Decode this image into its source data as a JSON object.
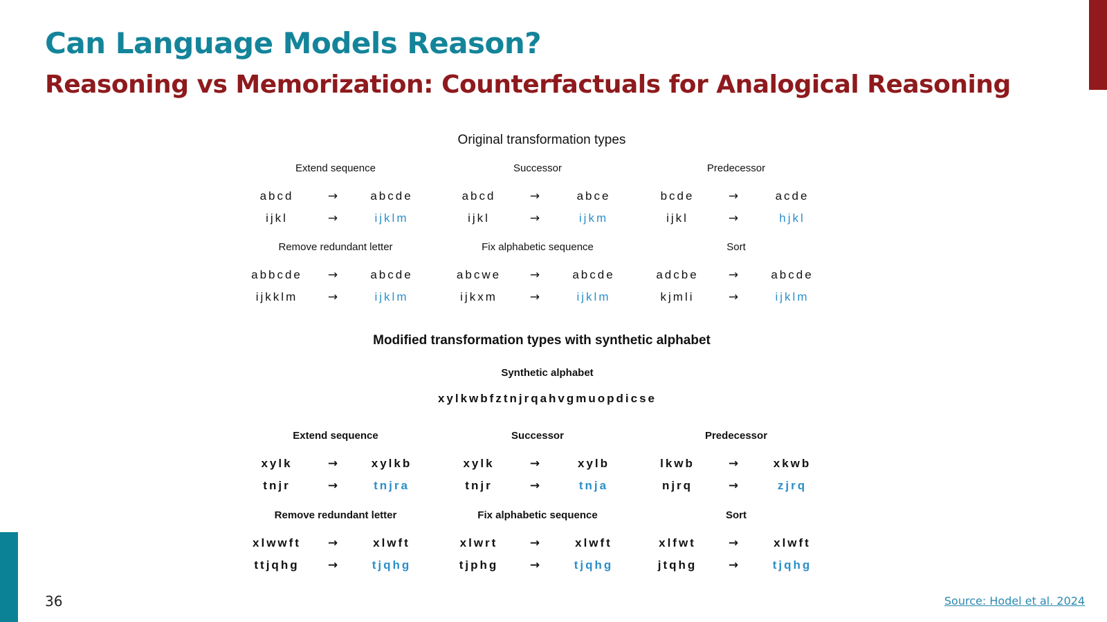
{
  "slide": {
    "title": "Can Language Models Reason?",
    "subtitle": "Reasoning vs Memorization: Counterfactuals for Analogical Reasoning",
    "number": "36",
    "source": "Source: Hodel et al. 2024",
    "colors": {
      "title": "#13849a",
      "subtitle": "#8e1a1d",
      "corner_bar": "#921a1c",
      "side_bar": "#0c8296",
      "answer": "#2b8fc9"
    }
  },
  "figure": {
    "original_heading": "Original transformation types",
    "modified_heading": "Modified transformation types with synthetic alphabet",
    "synthetic_label": "Synthetic alphabet",
    "synthetic_alphabet": "xylkwbfztnjrqahvgmuopdicse",
    "arrow": "→",
    "original": [
      {
        "title": "Extend sequence",
        "rows": [
          {
            "src": "abcd",
            "dst": "abcde"
          },
          {
            "src": "ijkl",
            "dst": "ijklm"
          }
        ]
      },
      {
        "title": "Successor",
        "rows": [
          {
            "src": "abcd",
            "dst": "abce"
          },
          {
            "src": "ijkl",
            "dst": "ijkm"
          }
        ]
      },
      {
        "title": "Predecessor",
        "rows": [
          {
            "src": "bcde",
            "dst": "acde"
          },
          {
            "src": "ijkl",
            "dst": "hjkl"
          }
        ]
      },
      {
        "title": "Remove redundant letter",
        "rows": [
          {
            "src": "abbcde",
            "dst": "abcde"
          },
          {
            "src": "ijkklm",
            "dst": "ijklm"
          }
        ]
      },
      {
        "title": "Fix alphabetic sequence",
        "rows": [
          {
            "src": "abcwe",
            "dst": "abcde"
          },
          {
            "src": "ijkxm",
            "dst": "ijklm"
          }
        ]
      },
      {
        "title": "Sort",
        "rows": [
          {
            "src": "adcbe",
            "dst": "abcde"
          },
          {
            "src": "kjmli",
            "dst": "ijklm"
          }
        ]
      }
    ],
    "modified": [
      {
        "title": "Extend sequence",
        "rows": [
          {
            "src": "xylk",
            "dst": "xylkb"
          },
          {
            "src": "tnjr",
            "dst": "tnjra"
          }
        ]
      },
      {
        "title": "Successor",
        "rows": [
          {
            "src": "xylk",
            "dst": "xylb"
          },
          {
            "src": "tnjr",
            "dst": "tnja"
          }
        ]
      },
      {
        "title": "Predecessor",
        "rows": [
          {
            "src": "lkwb",
            "dst": "xkwb"
          },
          {
            "src": "njrq",
            "dst": "zjrq"
          }
        ]
      },
      {
        "title": "Remove redundant letter",
        "rows": [
          {
            "src": "xlwwft",
            "dst": "xlwft"
          },
          {
            "src": "ttjqhg",
            "dst": "tjqhg"
          }
        ]
      },
      {
        "title": "Fix alphabetic sequence",
        "rows": [
          {
            "src": "xlwrt",
            "dst": "xlwft"
          },
          {
            "src": "tjphg",
            "dst": "tjqhg"
          }
        ]
      },
      {
        "title": "Sort",
        "rows": [
          {
            "src": "xlfwt",
            "dst": "xlwft"
          },
          {
            "src": "jtqhg",
            "dst": "tjqhg"
          }
        ]
      }
    ]
  }
}
